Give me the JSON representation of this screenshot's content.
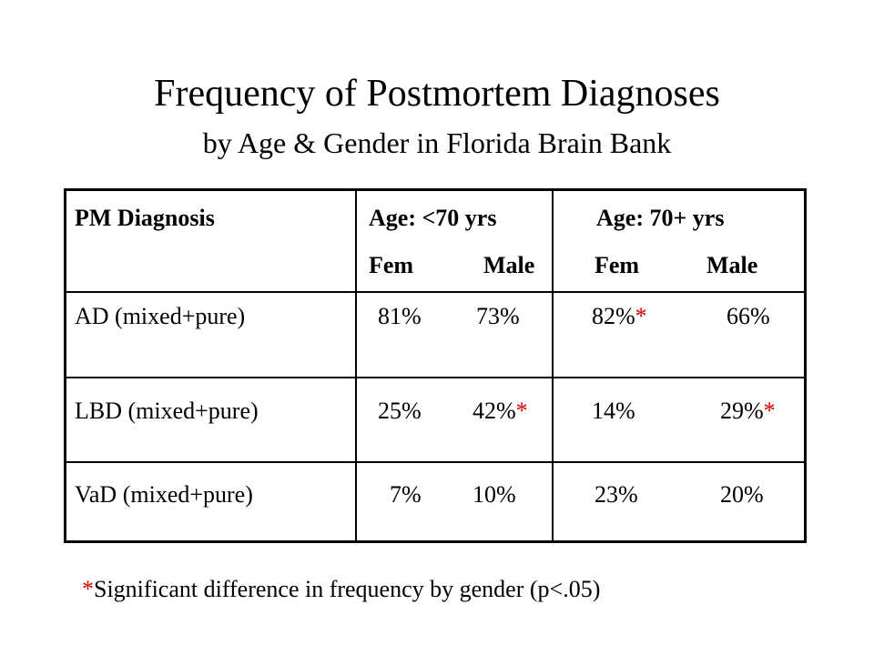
{
  "title": "Frequency of Postmortem Diagnoses",
  "subtitle": "by Age & Gender in Florida Brain Bank",
  "table": {
    "header": {
      "col1": "PM Diagnosis",
      "col2_line1": "Age: <70 yrs",
      "col2_fem": "Fem",
      "col2_male": "Male",
      "col3_line1": "Age: 70+ yrs",
      "col3_fem": "Fem",
      "col3_male": "Male"
    },
    "rows": [
      {
        "diagnosis": "AD (mixed+pure)",
        "young_fem": "81%",
        "young_male": "73%",
        "old_fem": "82%",
        "old_fem_mark": "*",
        "old_male": "66%"
      },
      {
        "diagnosis": "LBD (mixed+pure)",
        "young_fem": "25%",
        "young_male": "42%",
        "young_male_mark": "*",
        "old_fem": "14%",
        "old_male": "29%",
        "old_male_mark": "*"
      },
      {
        "diagnosis": "VaD (mixed+pure)",
        "young_fem": "7%",
        "young_male": "10%",
        "old_fem": "23%",
        "old_male": "20%"
      }
    ]
  },
  "footnote": {
    "mark": "*",
    "text": "Significant difference in frequency by gender (p<.05)"
  },
  "colors": {
    "text": "#000000",
    "significance_mark": "#d40000",
    "background": "#ffffff"
  }
}
